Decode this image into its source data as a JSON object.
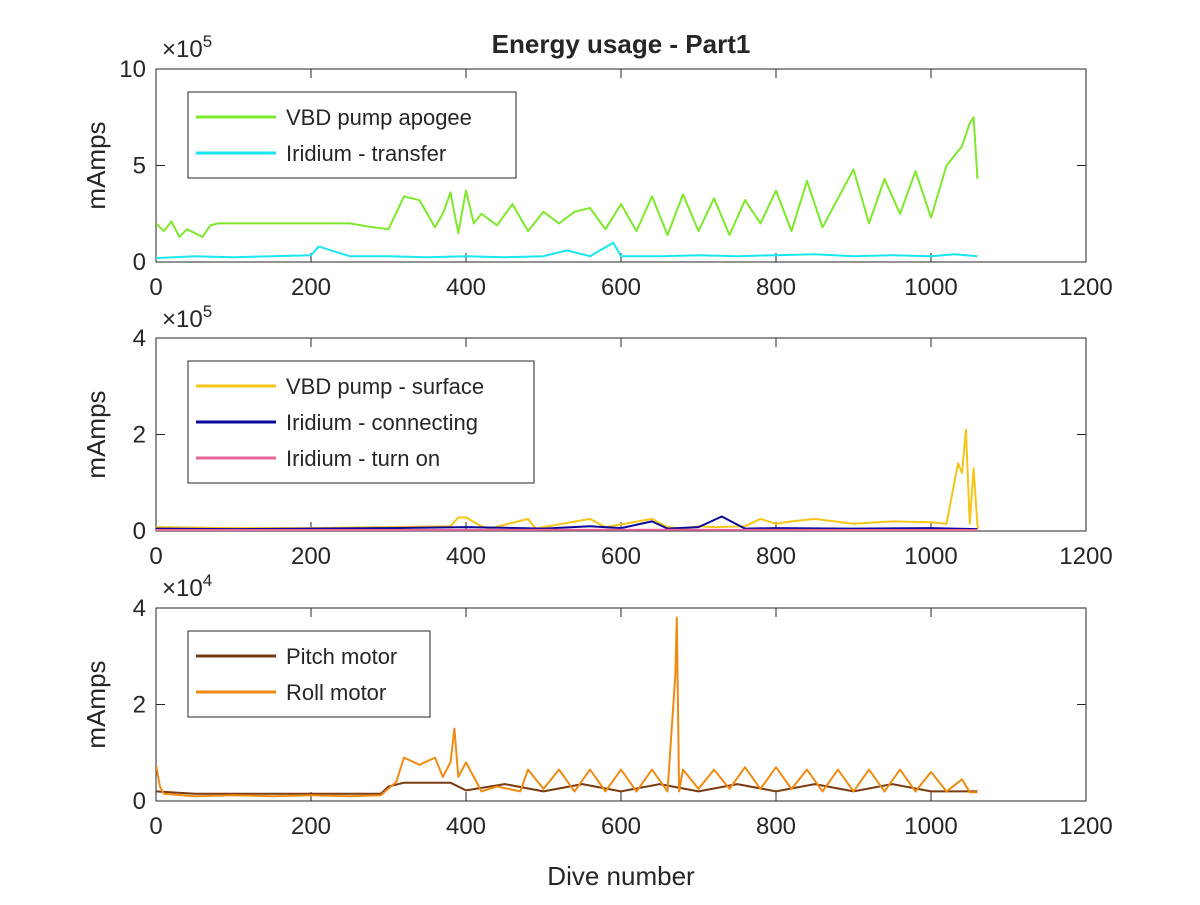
{
  "figure": {
    "title": "Energy usage - Part1",
    "xlabel": "Dive number"
  },
  "chart_data": [
    {
      "type": "line",
      "title": "Energy usage - Part1",
      "xlabel": "",
      "ylabel": "mAmps",
      "xlim": [
        0,
        1200
      ],
      "ylim": [
        0,
        1000000
      ],
      "x_ticks": [
        0,
        200,
        400,
        600,
        800,
        1000,
        1200
      ],
      "y_ticks": [
        0,
        500000,
        1000000
      ],
      "y_tick_labels": [
        "0",
        "5",
        "10"
      ],
      "y_multiplier": {
        "base": "×10",
        "exponent": "5"
      },
      "grid": false,
      "legend_position": "top-left",
      "series": [
        {
          "name": "VBD pump apogee",
          "color": "#7ee82a",
          "x": [
            0,
            10,
            20,
            30,
            40,
            50,
            60,
            70,
            80,
            100,
            150,
            200,
            250,
            280,
            300,
            320,
            340,
            360,
            370,
            380,
            390,
            400,
            410,
            420,
            440,
            460,
            480,
            500,
            520,
            540,
            560,
            580,
            600,
            620,
            640,
            660,
            680,
            700,
            720,
            740,
            760,
            780,
            800,
            820,
            840,
            860,
            880,
            900,
            920,
            940,
            960,
            980,
            1000,
            1020,
            1040,
            1050,
            1055,
            1060
          ],
          "values": [
            200000,
            160000,
            210000,
            130000,
            170000,
            150000,
            130000,
            190000,
            200000,
            200000,
            200000,
            200000,
            200000,
            180000,
            170000,
            340000,
            320000,
            180000,
            250000,
            360000,
            150000,
            370000,
            200000,
            250000,
            190000,
            300000,
            160000,
            260000,
            200000,
            260000,
            280000,
            170000,
            300000,
            160000,
            340000,
            140000,
            350000,
            160000,
            330000,
            140000,
            320000,
            200000,
            370000,
            160000,
            420000,
            180000,
            330000,
            480000,
            200000,
            430000,
            250000,
            470000,
            230000,
            500000,
            600000,
            720000,
            750000,
            430000
          ]
        },
        {
          "name": "Iridium - transfer",
          "color": "#1ae6f0",
          "x": [
            0,
            50,
            100,
            150,
            200,
            210,
            250,
            300,
            350,
            400,
            450,
            500,
            530,
            560,
            590,
            600,
            650,
            700,
            750,
            800,
            850,
            900,
            950,
            1000,
            1030,
            1060
          ],
          "values": [
            20000,
            30000,
            25000,
            30000,
            35000,
            80000,
            30000,
            30000,
            25000,
            30000,
            25000,
            30000,
            60000,
            30000,
            100000,
            30000,
            30000,
            35000,
            30000,
            35000,
            40000,
            30000,
            35000,
            30000,
            40000,
            30000
          ]
        }
      ]
    },
    {
      "type": "line",
      "xlabel": "",
      "ylabel": "mAmps",
      "xlim": [
        0,
        1200
      ],
      "ylim": [
        0,
        400000
      ],
      "x_ticks": [
        0,
        200,
        400,
        600,
        800,
        1000,
        1200
      ],
      "y_ticks": [
        0,
        200000,
        400000
      ],
      "y_tick_labels": [
        "0",
        "2",
        "4"
      ],
      "y_multiplier": {
        "base": "×10",
        "exponent": "5"
      },
      "grid": false,
      "legend_position": "top-left",
      "series": [
        {
          "name": "VBD pump - surface",
          "color": "#f5c518",
          "x": [
            0,
            100,
            200,
            300,
            380,
            390,
            400,
            420,
            430,
            480,
            490,
            500,
            560,
            580,
            640,
            660,
            680,
            700,
            720,
            760,
            780,
            800,
            820,
            850,
            900,
            950,
            1000,
            1020,
            1030,
            1035,
            1040,
            1045,
            1050,
            1055,
            1060,
            1062
          ],
          "values": [
            8000,
            6000,
            6000,
            8000,
            10000,
            28000,
            28000,
            10000,
            5000,
            25000,
            5000,
            8000,
            25000,
            8000,
            25000,
            8000,
            5000,
            10000,
            8000,
            10000,
            25000,
            15000,
            20000,
            25000,
            15000,
            20000,
            18000,
            15000,
            100000,
            140000,
            120000,
            210000,
            15000,
            130000,
            10000,
            5000
          ]
        },
        {
          "name": "Iridium - connecting",
          "color": "#0a0a99",
          "x": [
            0,
            100,
            200,
            300,
            400,
            500,
            560,
            600,
            640,
            660,
            700,
            730,
            760,
            800,
            900,
            1000,
            1060
          ],
          "values": [
            5000,
            4000,
            5000,
            6000,
            8000,
            5000,
            10000,
            6000,
            20000,
            5000,
            8000,
            30000,
            5000,
            6000,
            5000,
            6000,
            4000
          ]
        },
        {
          "name": "Iridium - turn on",
          "color": "#e8669a",
          "x": [
            0,
            300,
            600,
            900,
            1060
          ],
          "values": [
            2000,
            2000,
            2500,
            2000,
            2000
          ]
        }
      ]
    },
    {
      "type": "line",
      "xlabel": "Dive number",
      "ylabel": "mAmps",
      "xlim": [
        0,
        1200
      ],
      "ylim": [
        0,
        40000
      ],
      "x_ticks": [
        0,
        200,
        400,
        600,
        800,
        1000,
        1200
      ],
      "y_ticks": [
        0,
        20000,
        40000
      ],
      "y_tick_labels": [
        "0",
        "2",
        "4"
      ],
      "y_multiplier": {
        "base": "×10",
        "exponent": "4"
      },
      "grid": false,
      "legend_position": "top-left",
      "series": [
        {
          "name": "Pitch motor",
          "color": "#7a3b12",
          "x": [
            0,
            50,
            100,
            150,
            200,
            250,
            290,
            300,
            320,
            380,
            400,
            450,
            500,
            550,
            600,
            650,
            700,
            750,
            800,
            850,
            900,
            950,
            1000,
            1050,
            1060
          ],
          "values": [
            2000,
            1500,
            1500,
            1500,
            1500,
            1500,
            1500,
            3000,
            3800,
            3800,
            2200,
            3500,
            2000,
            3500,
            2000,
            3500,
            2000,
            3500,
            2000,
            3500,
            2000,
            3500,
            2000,
            2000,
            2000
          ]
        },
        {
          "name": "Roll motor",
          "color": "#f08a12",
          "x": [
            0,
            5,
            10,
            50,
            100,
            150,
            200,
            250,
            290,
            310,
            320,
            340,
            360,
            370,
            380,
            385,
            390,
            400,
            420,
            440,
            470,
            480,
            500,
            520,
            540,
            560,
            580,
            600,
            620,
            640,
            660,
            670,
            672,
            675,
            680,
            700,
            720,
            740,
            760,
            780,
            800,
            820,
            840,
            860,
            880,
            900,
            920,
            940,
            960,
            980,
            1000,
            1020,
            1040,
            1050,
            1060
          ],
          "values": [
            7500,
            3000,
            1500,
            1000,
            1200,
            1000,
            1200,
            1000,
            1200,
            4000,
            9000,
            7500,
            9000,
            5000,
            8000,
            15000,
            5000,
            8000,
            2000,
            3000,
            2000,
            6500,
            2500,
            6500,
            2000,
            6500,
            2000,
            6500,
            2000,
            6500,
            2000,
            26000,
            38000,
            2000,
            6500,
            2500,
            6500,
            2500,
            7000,
            2500,
            7000,
            2500,
            6500,
            2000,
            6500,
            2000,
            6500,
            2000,
            6500,
            2000,
            6000,
            2000,
            4500,
            1800,
            1800
          ]
        }
      ]
    }
  ]
}
